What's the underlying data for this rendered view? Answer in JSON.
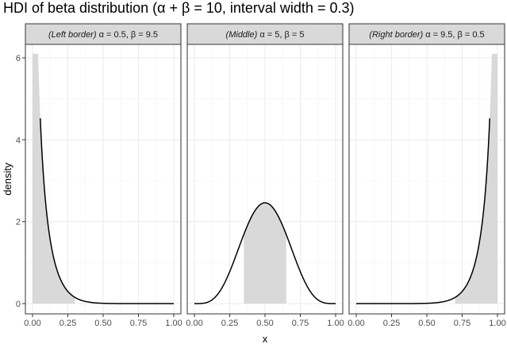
{
  "title": "HDI of beta distribution (α + β = 10, interval width = 0.3)",
  "chart_data": {
    "type": "area",
    "xlabel": "x",
    "ylabel": "density",
    "xlim": [
      0,
      1
    ],
    "ylim": [
      0,
      6.1
    ],
    "x_ticks": [
      "0.00",
      "0.25",
      "0.50",
      "0.75",
      "1.00"
    ],
    "y_ticks": [
      "0",
      "2",
      "4",
      "6"
    ],
    "grid": true,
    "panels": [
      {
        "strip_italic": "(Left border)",
        "strip_params": "α = 0.5,   β = 9.5",
        "alpha": 0.5,
        "beta": 9.5,
        "hdi": [
          0.0,
          0.3
        ],
        "curve_start": 0.055
      },
      {
        "strip_italic": "(Middle)",
        "strip_params": "α = 5,   β = 5",
        "alpha": 5,
        "beta": 5,
        "hdi": [
          0.35,
          0.65
        ],
        "curve_start": 0.0
      },
      {
        "strip_italic": "(Right border)",
        "strip_params": "α = 9.5,   β = 0.5",
        "alpha": 9.5,
        "beta": 0.5,
        "hdi": [
          0.7,
          1.0
        ],
        "curve_start": 0.0
      }
    ]
  }
}
